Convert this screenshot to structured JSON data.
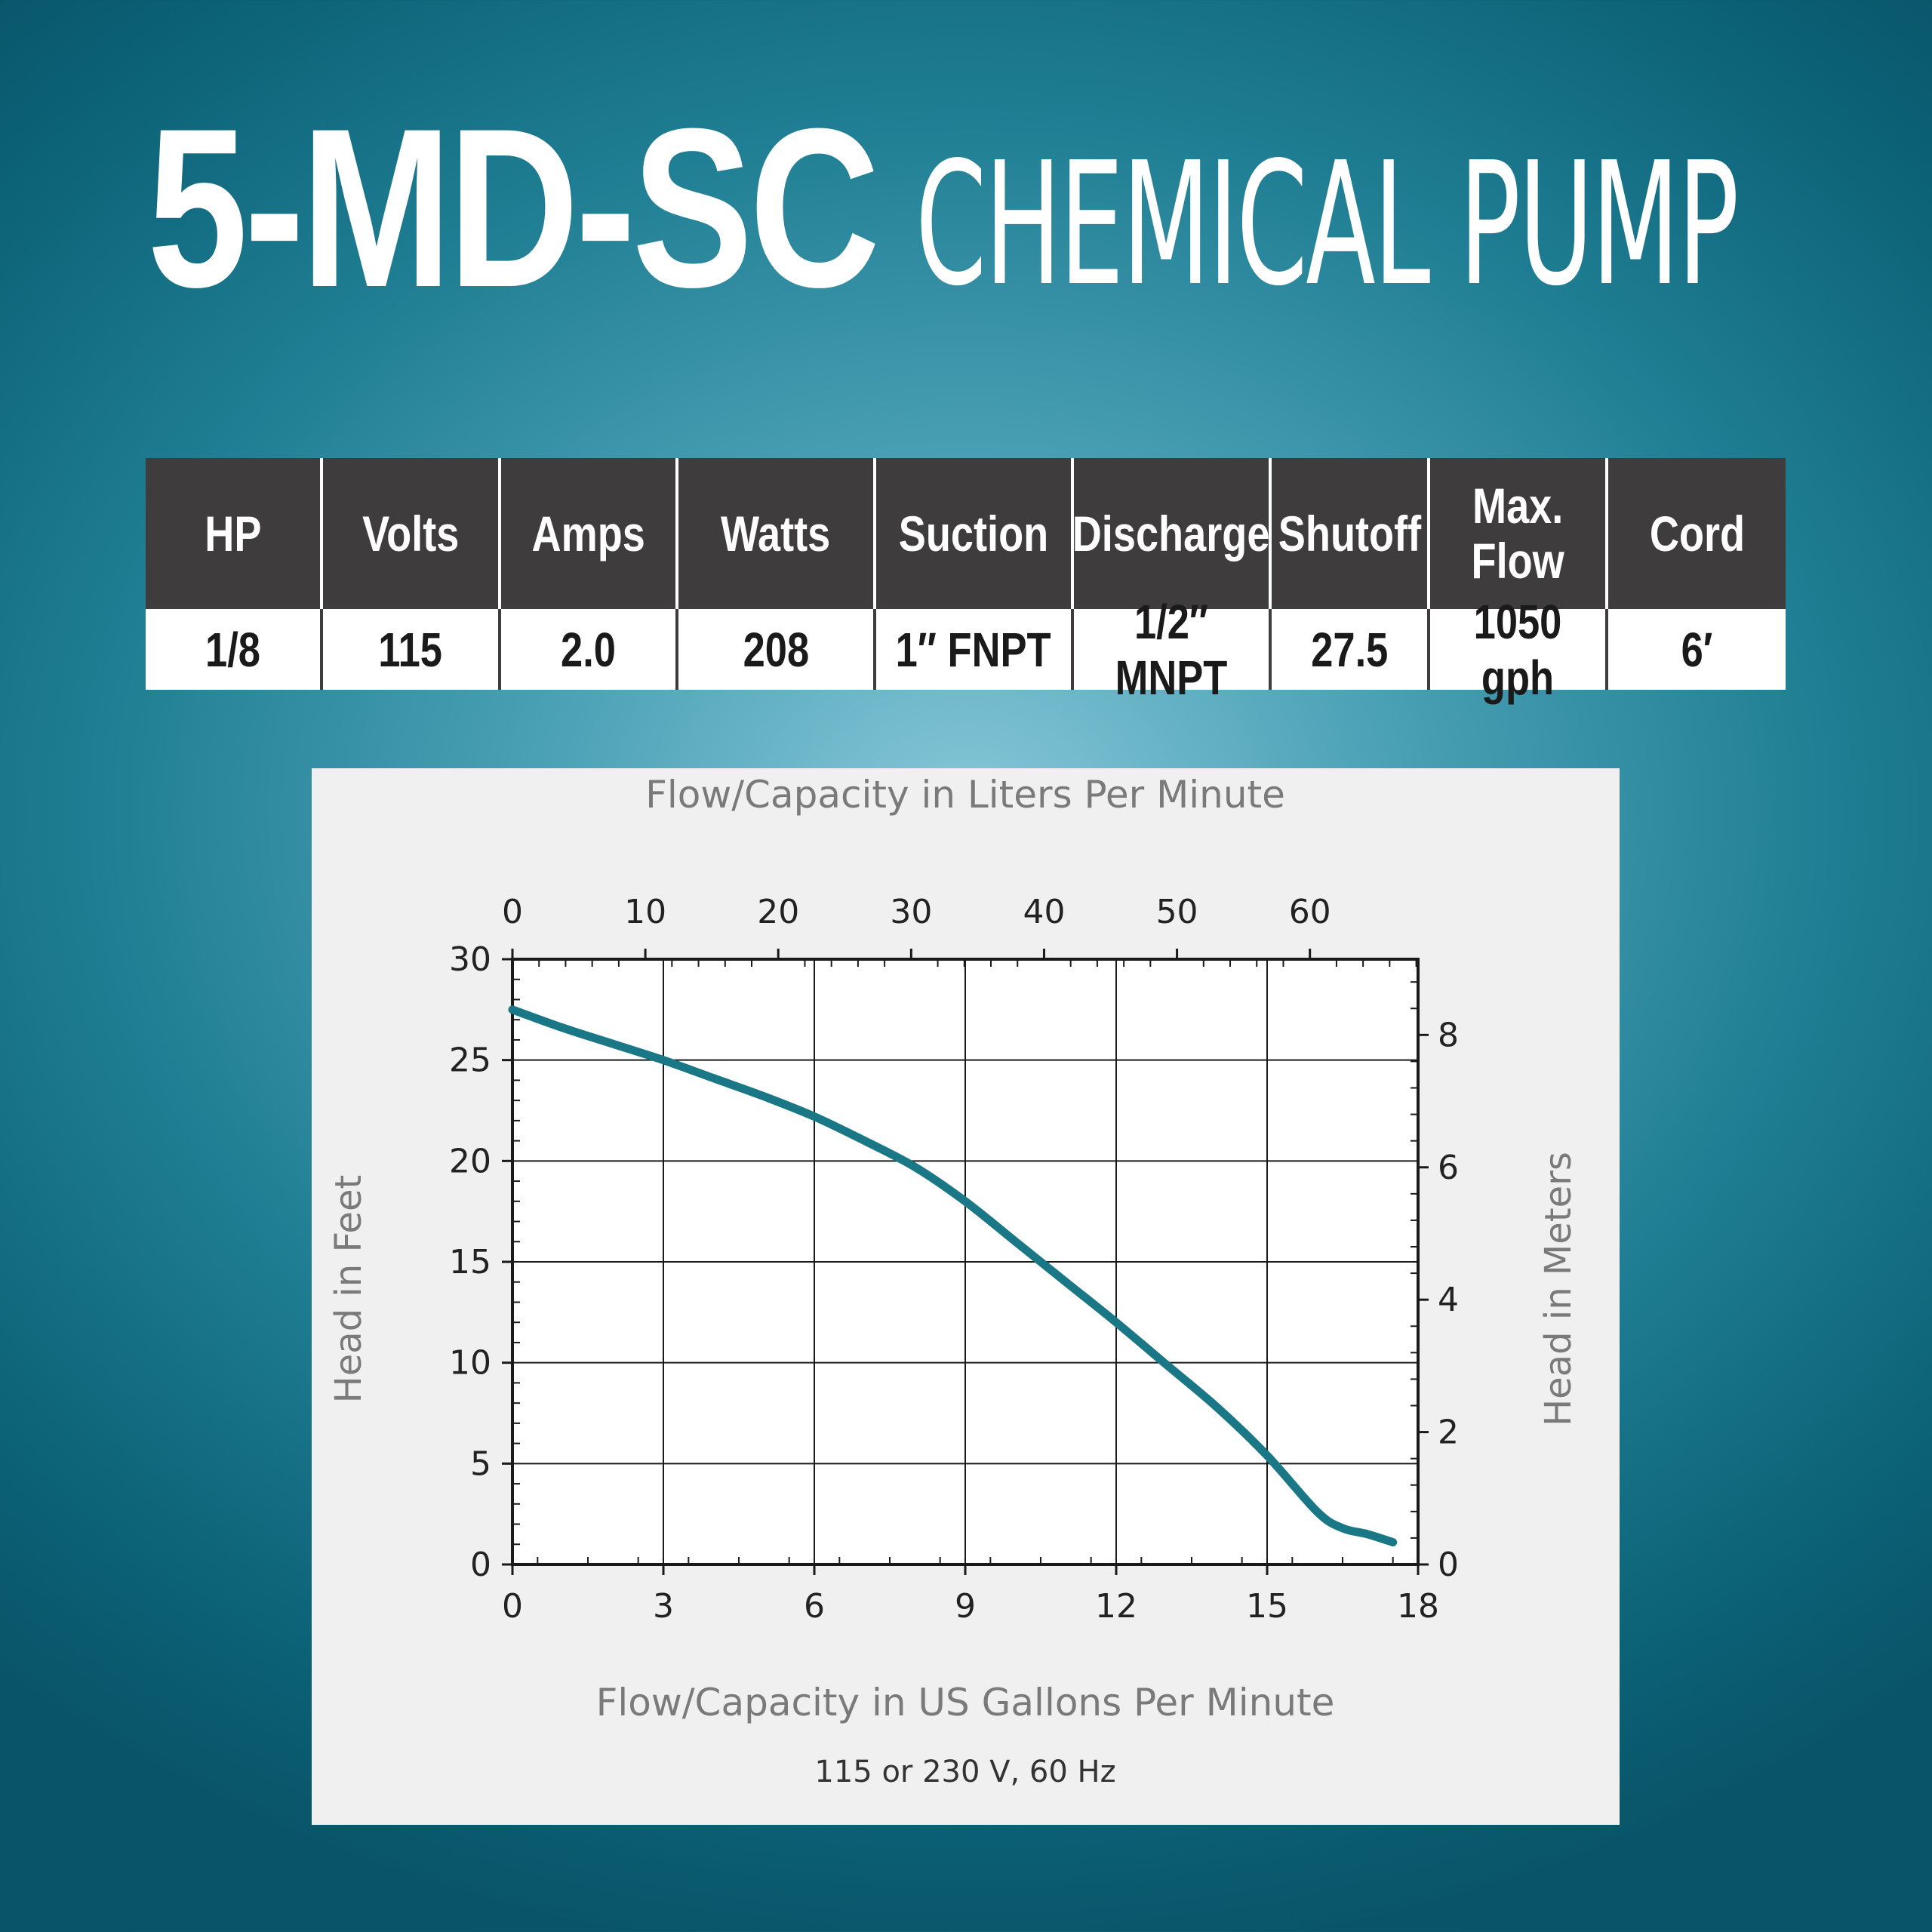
{
  "title": {
    "model": "5-MD-SC",
    "description": "CHEMICAL PUMP"
  },
  "specs": {
    "headers": [
      "HP",
      "Volts",
      "Amps",
      "Watts",
      "Suction",
      "Discharge",
      "Shutoff",
      "Max.\nFlow",
      "Cord"
    ],
    "values": [
      "1/8",
      "115",
      "2.0",
      "208",
      "1″ FNPT",
      "1/2″ MNPT",
      "27.5",
      "1050 gph",
      "6′"
    ]
  },
  "chart_data": {
    "type": "line",
    "title": "",
    "top_axis_label": "Flow/Capacity in Liters Per Minute",
    "xlabel": "Flow/Capacity in US Gallons Per Minute",
    "ylabel": "Head in Feet",
    "right_axis_label": "Head in Meters",
    "note": "115 or 230 V, 60 Hz",
    "xlim": [
      0,
      18
    ],
    "ylim": [
      0,
      30
    ],
    "x_ticks": [
      0,
      3,
      6,
      9,
      12,
      15,
      18
    ],
    "y_ticks": [
      0,
      5,
      10,
      15,
      20,
      25,
      30
    ],
    "top_ticks": [
      0,
      10,
      20,
      30,
      40,
      50,
      60
    ],
    "right_ticks": [
      0,
      2,
      4,
      6,
      8
    ],
    "grid": true,
    "line_color": "#1a7785",
    "series": [
      {
        "x": [
          0,
          1,
          2,
          3,
          4,
          5,
          6,
          7,
          8,
          9,
          10,
          11,
          12,
          13,
          14,
          15,
          16,
          16.5,
          17,
          17.5
        ],
        "y": [
          27.5,
          26.6,
          25.8,
          25.0,
          24.1,
          23.2,
          22.2,
          21.0,
          19.7,
          18.0,
          16.0,
          14.0,
          12.0,
          9.9,
          7.8,
          5.4,
          2.6,
          1.8,
          1.5,
          1.1
        ]
      }
    ]
  }
}
